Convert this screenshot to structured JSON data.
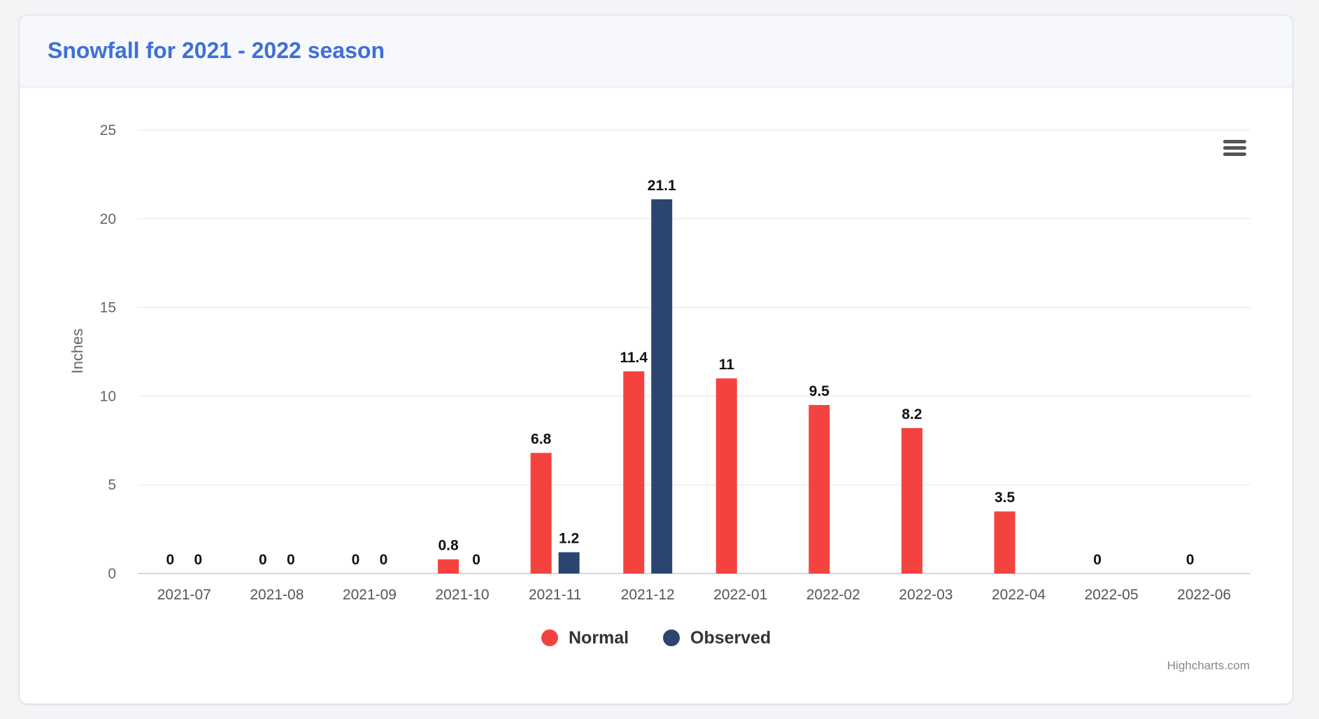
{
  "card": {
    "title": "Snowfall for 2021 - 2022 season"
  },
  "menu": {
    "icon": "hamburger-menu-icon"
  },
  "credits": "Highcharts.com",
  "colors": {
    "normal": "#f4433f",
    "observed": "#2b4570",
    "title": "#3f6fd8",
    "grid": "#e6e6e6"
  },
  "chart_data": {
    "type": "bar",
    "title": "",
    "xlabel": "",
    "ylabel": "Inches",
    "ylim": [
      0,
      25
    ],
    "yticks": [
      0,
      5,
      10,
      15,
      20,
      25
    ],
    "grid": true,
    "legend_position": "bottom-center",
    "categories": [
      "2021-07",
      "2021-08",
      "2021-09",
      "2021-10",
      "2021-11",
      "2021-12",
      "2022-01",
      "2022-02",
      "2022-03",
      "2022-04",
      "2022-05",
      "2022-06"
    ],
    "series": [
      {
        "name": "Normal",
        "color": "#f4433f",
        "values": [
          0,
          0,
          0,
          0.8,
          6.8,
          11.4,
          11,
          9.5,
          8.2,
          3.5,
          0,
          0
        ]
      },
      {
        "name": "Observed",
        "color": "#2b4570",
        "values": [
          0,
          0,
          0,
          0,
          1.2,
          21.1,
          null,
          null,
          null,
          null,
          null,
          null
        ]
      }
    ]
  }
}
